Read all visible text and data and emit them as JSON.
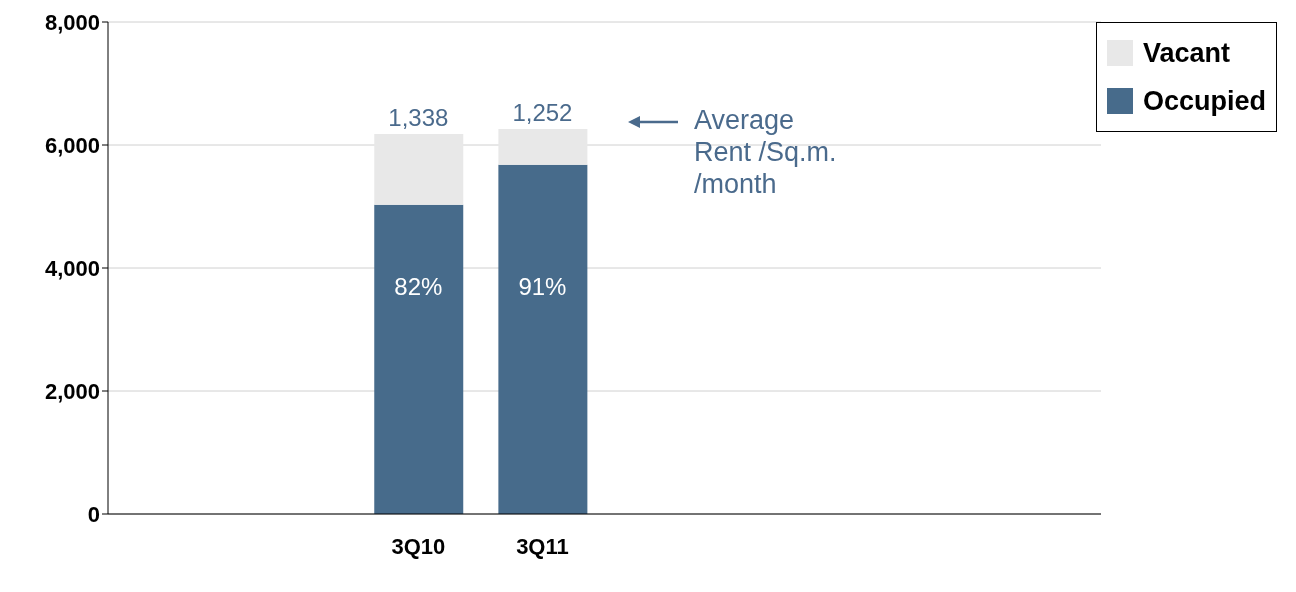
{
  "chart_data": {
    "type": "bar",
    "stacked": true,
    "categories": [
      null,
      null,
      "3Q10",
      "3Q11",
      null,
      null,
      null,
      null
    ],
    "series": [
      {
        "name": "Occupied",
        "color": "#476b8b",
        "values": [
          null,
          null,
          5030,
          5680,
          null,
          null,
          null,
          null
        ]
      },
      {
        "name": "Vacant",
        "color": "#e8e8e8",
        "values": [
          null,
          null,
          1150,
          580,
          null,
          null,
          null,
          null
        ]
      }
    ],
    "ylim": [
      0,
      8000
    ],
    "yticks": [
      {
        "value": 0,
        "label": "0"
      },
      {
        "value": 2000,
        "label": "2,000"
      },
      {
        "value": 4000,
        "label": "4,000"
      },
      {
        "value": 6000,
        "label": "6,000"
      },
      {
        "value": 8000,
        "label": "8,000"
      }
    ],
    "grid": "y",
    "legend": "top right",
    "annotations": [
      {
        "text": "1,338",
        "x": "3Q10",
        "y": 6180
      },
      {
        "text": "1,252",
        "x": "3Q11",
        "y": 6260
      },
      "82%",
      "91%",
      "Average Rent /Sq.m. /month"
    ]
  }
}
